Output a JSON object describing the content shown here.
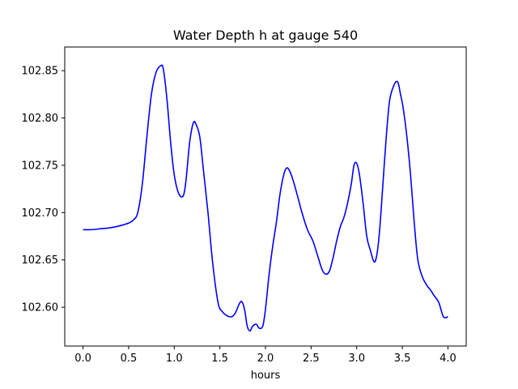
{
  "chart_data": {
    "type": "line",
    "title": "Water Depth h at gauge 540",
    "xlabel": "hours",
    "ylabel": "",
    "xlim": [
      -0.2,
      4.2
    ],
    "ylim": [
      102.559,
      102.875
    ],
    "x_ticks": [
      0.0,
      0.5,
      1.0,
      1.5,
      2.0,
      2.5,
      3.0,
      3.5,
      4.0
    ],
    "x_tick_labels": [
      "0.0",
      "0.5",
      "1.0",
      "1.5",
      "2.0",
      "2.5",
      "3.0",
      "3.5",
      "4.0"
    ],
    "y_ticks": [
      102.6,
      102.65,
      102.7,
      102.75,
      102.8,
      102.85
    ],
    "y_tick_labels": [
      "102.60",
      "102.65",
      "102.70",
      "102.75",
      "102.80",
      "102.85"
    ],
    "grid": false,
    "series": [
      {
        "color": "#0000ff",
        "x": [
          0.0,
          0.1,
          0.2,
          0.3,
          0.4,
          0.5,
          0.55,
          0.6,
          0.65,
          0.7,
          0.75,
          0.8,
          0.85,
          0.88,
          0.92,
          0.96,
          1.0,
          1.05,
          1.1,
          1.13,
          1.17,
          1.21,
          1.24,
          1.28,
          1.32,
          1.37,
          1.42,
          1.48,
          1.53,
          1.58,
          1.63,
          1.67,
          1.71,
          1.74,
          1.77,
          1.8,
          1.83,
          1.86,
          1.9,
          1.93,
          1.97,
          2.0,
          2.04,
          2.08,
          2.12,
          2.16,
          2.2,
          2.23,
          2.26,
          2.3,
          2.35,
          2.4,
          2.46,
          2.52,
          2.57,
          2.62,
          2.66,
          2.7,
          2.74,
          2.78,
          2.82,
          2.86,
          2.9,
          2.94,
          2.97,
          3.0,
          3.03,
          3.07,
          3.11,
          3.15,
          3.19,
          3.22,
          3.25,
          3.28,
          3.32,
          3.36,
          3.41,
          3.45,
          3.48,
          3.51,
          3.55,
          3.59,
          3.63,
          3.67,
          3.72,
          3.77,
          3.81,
          3.85,
          3.9,
          3.95,
          4.0
        ],
        "y": [
          102.682,
          102.682,
          102.683,
          102.684,
          102.686,
          102.689,
          102.692,
          102.7,
          102.73,
          102.78,
          102.825,
          102.848,
          102.855,
          102.852,
          102.82,
          102.775,
          102.74,
          102.72,
          102.718,
          102.735,
          102.775,
          102.795,
          102.793,
          102.78,
          102.745,
          102.7,
          102.648,
          102.605,
          102.595,
          102.591,
          102.59,
          102.594,
          102.603,
          102.606,
          102.598,
          102.58,
          102.575,
          102.58,
          102.582,
          102.578,
          102.58,
          102.598,
          102.635,
          102.665,
          102.69,
          102.72,
          102.74,
          102.747,
          102.745,
          102.735,
          102.718,
          102.7,
          102.682,
          102.67,
          102.655,
          102.64,
          102.635,
          102.638,
          102.652,
          102.67,
          102.685,
          102.695,
          102.71,
          102.73,
          102.75,
          102.752,
          102.74,
          102.71,
          102.675,
          102.66,
          102.648,
          102.655,
          102.68,
          102.72,
          102.775,
          102.818,
          102.835,
          102.838,
          102.825,
          102.81,
          102.78,
          102.74,
          102.69,
          102.65,
          102.632,
          102.623,
          102.618,
          102.612,
          102.605,
          102.59,
          102.59
        ]
      }
    ]
  }
}
